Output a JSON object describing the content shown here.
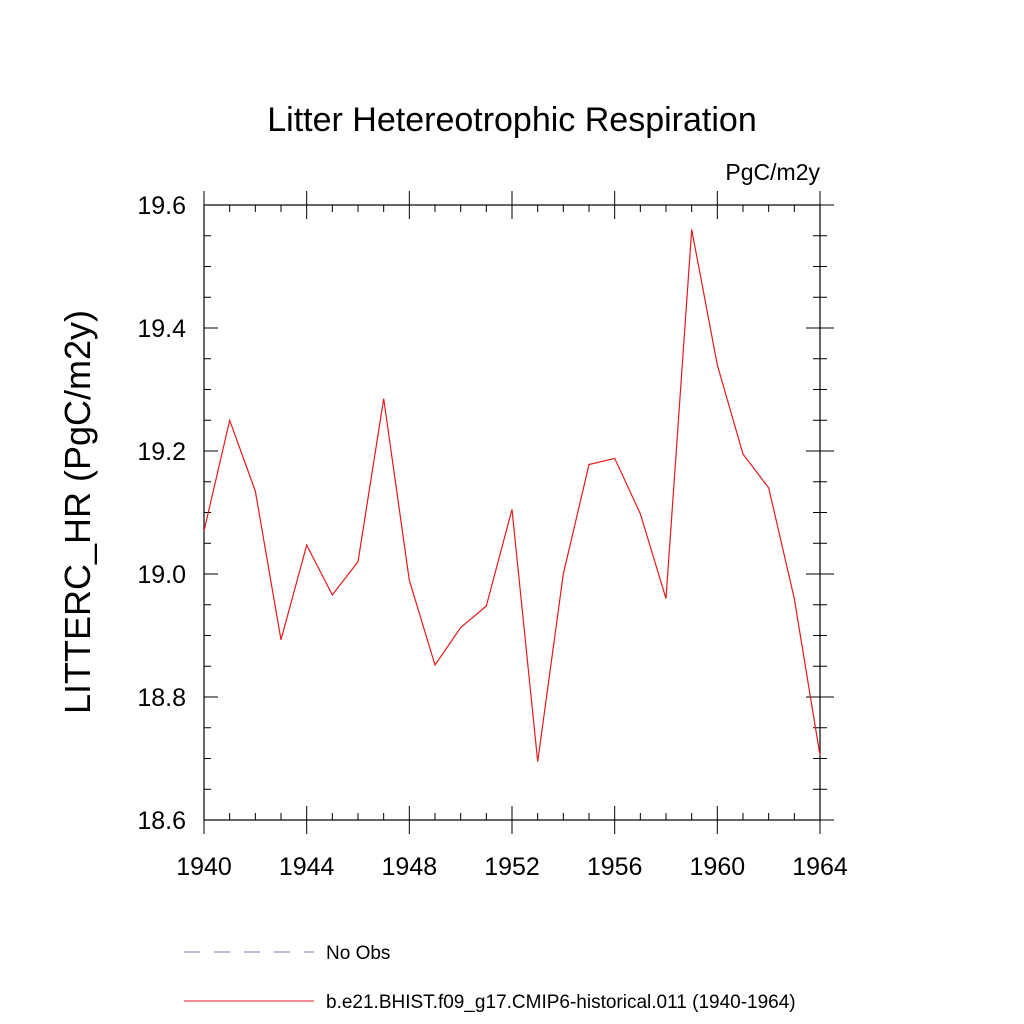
{
  "chart_data": {
    "type": "line",
    "title": "Litter Hetereotrophic Respiration",
    "units_label": "PgC/m2y",
    "ylabel": "LITTERC_HR  (PgC/m2y)",
    "xlabel": "",
    "xlim": [
      1940,
      1964
    ],
    "ylim": [
      18.6,
      19.6
    ],
    "x_ticks": [
      "1940",
      "1944",
      "1948",
      "1952",
      "1956",
      "1960",
      "1964"
    ],
    "y_ticks": [
      "18.6",
      "18.8",
      "19.0",
      "19.2",
      "19.4",
      "19.6"
    ],
    "grid": false,
    "legend_position": "bottom",
    "legend": [
      {
        "label": "No Obs",
        "color": "#7b7bc4",
        "style": "dashed"
      },
      {
        "label": "b.e21.BHIST.f09_g17.CMIP6-historical.011 (1940-1964)",
        "color": "#e41a1c",
        "style": "solid"
      }
    ],
    "series": [
      {
        "name": "b.e21.BHIST.f09_g17.CMIP6-historical.011 (1940-1964)",
        "color": "#e41a1c",
        "x": [
          1940,
          1941,
          1942,
          1943,
          1944,
          1945,
          1946,
          1947,
          1948,
          1949,
          1950,
          1951,
          1952,
          1953,
          1954,
          1955,
          1956,
          1957,
          1958,
          1959,
          1960,
          1961,
          1962,
          1963,
          1964
        ],
        "y": [
          19.07,
          19.25,
          19.135,
          18.893,
          19.047,
          18.966,
          19.02,
          19.285,
          18.99,
          18.852,
          18.913,
          18.948,
          19.105,
          18.695,
          19.0,
          19.178,
          19.188,
          19.098,
          18.96,
          19.56,
          19.34,
          19.195,
          19.14,
          18.96,
          18.705
        ]
      }
    ]
  }
}
